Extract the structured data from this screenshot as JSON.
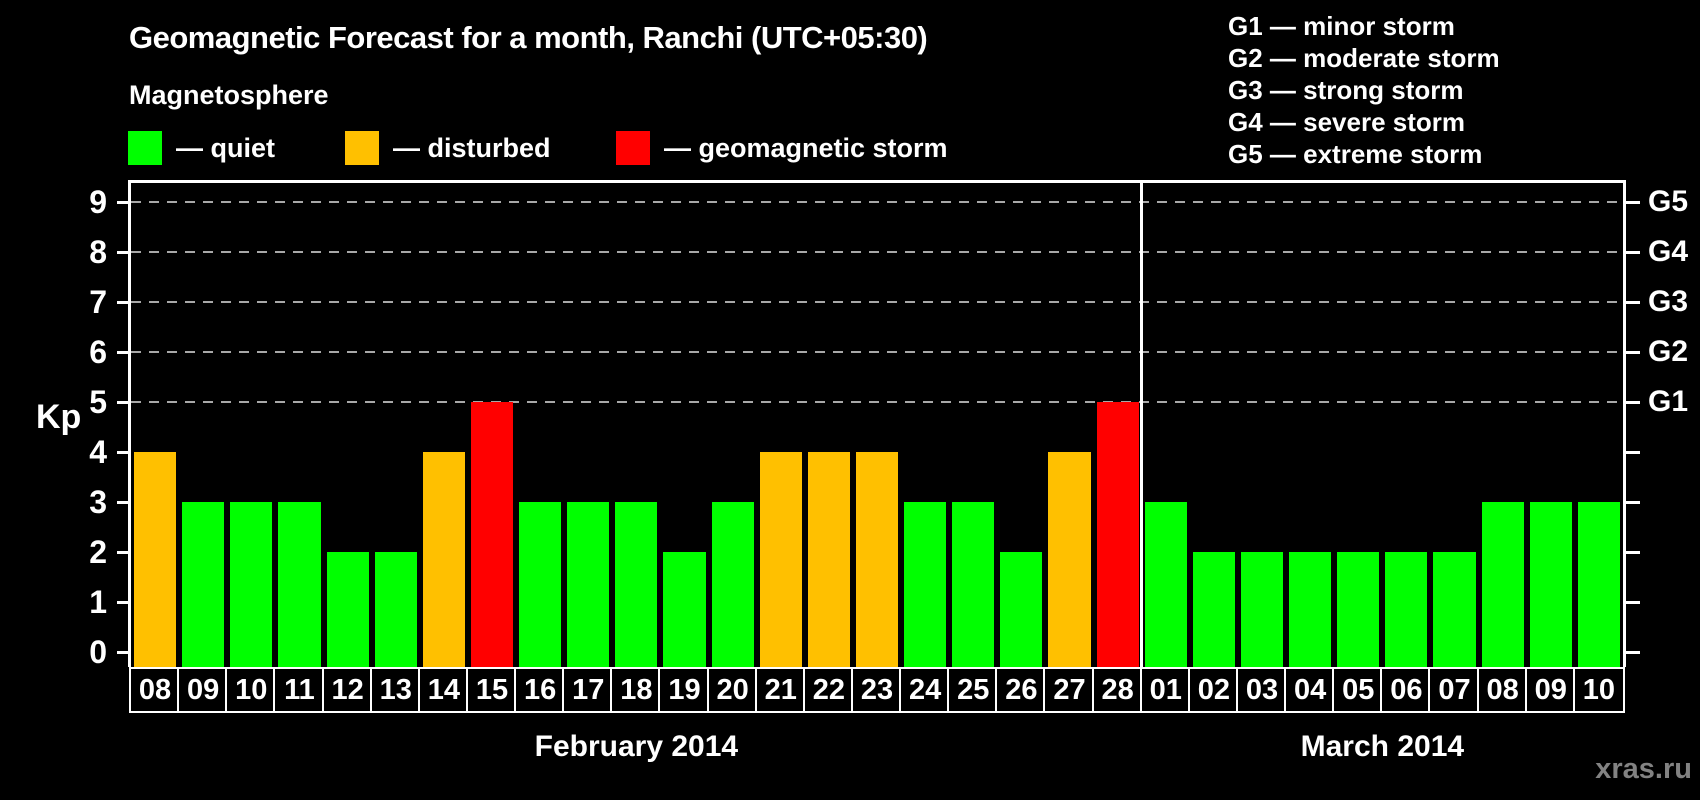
{
  "title": "Geomagnetic Forecast for a month, Ranchi (UTC+05:30)",
  "magnetosphere": {
    "heading": "Magnetosphere",
    "items": [
      {
        "key": "quiet",
        "label": "— quiet",
        "color": "#00ff00"
      },
      {
        "key": "disturbed",
        "label": "— disturbed",
        "color": "#ffc000"
      },
      {
        "key": "storm",
        "label": "— geomagnetic storm",
        "color": "#ff0000"
      }
    ]
  },
  "g_legend": [
    "G1 — minor storm",
    "G2 — moderate storm",
    "G3 — strong storm",
    "G4 — severe storm",
    "G5 — extreme storm"
  ],
  "watermark": "xras.ru",
  "chart_data": {
    "type": "bar",
    "title": "Geomagnetic Forecast for a month, Ranchi (UTC+05:30)",
    "ylabel": "Kp",
    "ylim": [
      0,
      9
    ],
    "y_ticks": [
      0,
      1,
      2,
      3,
      4,
      5,
      6,
      7,
      8,
      9
    ],
    "gridlines_at": [
      5,
      6,
      7,
      8,
      9
    ],
    "grid": "dashed horizontal at storm levels only",
    "legend_position": "top",
    "right_axis_labels": [
      {
        "kp": 5,
        "label": "G1"
      },
      {
        "kp": 6,
        "label": "G2"
      },
      {
        "kp": 7,
        "label": "G3"
      },
      {
        "kp": 8,
        "label": "G4"
      },
      {
        "kp": 9,
        "label": "G5"
      }
    ],
    "status_colors": {
      "quiet": "#00ff00",
      "disturbed": "#ffc000",
      "storm": "#ff0000"
    },
    "months": [
      {
        "label": "February 2014",
        "days": [
          {
            "day": "08",
            "kp": 4,
            "status": "disturbed"
          },
          {
            "day": "09",
            "kp": 3,
            "status": "quiet"
          },
          {
            "day": "10",
            "kp": 3,
            "status": "quiet"
          },
          {
            "day": "11",
            "kp": 3,
            "status": "quiet"
          },
          {
            "day": "12",
            "kp": 2,
            "status": "quiet"
          },
          {
            "day": "13",
            "kp": 2,
            "status": "quiet"
          },
          {
            "day": "14",
            "kp": 4,
            "status": "disturbed"
          },
          {
            "day": "15",
            "kp": 5,
            "status": "storm"
          },
          {
            "day": "16",
            "kp": 3,
            "status": "quiet"
          },
          {
            "day": "17",
            "kp": 3,
            "status": "quiet"
          },
          {
            "day": "18",
            "kp": 3,
            "status": "quiet"
          },
          {
            "day": "19",
            "kp": 2,
            "status": "quiet"
          },
          {
            "day": "20",
            "kp": 3,
            "status": "quiet"
          },
          {
            "day": "21",
            "kp": 4,
            "status": "disturbed"
          },
          {
            "day": "22",
            "kp": 4,
            "status": "disturbed"
          },
          {
            "day": "23",
            "kp": 4,
            "status": "disturbed"
          },
          {
            "day": "24",
            "kp": 3,
            "status": "quiet"
          },
          {
            "day": "25",
            "kp": 3,
            "status": "quiet"
          },
          {
            "day": "26",
            "kp": 2,
            "status": "quiet"
          },
          {
            "day": "27",
            "kp": 4,
            "status": "disturbed"
          },
          {
            "day": "28",
            "kp": 5,
            "status": "storm"
          }
        ]
      },
      {
        "label": "March 2014",
        "days": [
          {
            "day": "01",
            "kp": 3,
            "status": "quiet"
          },
          {
            "day": "02",
            "kp": 2,
            "status": "quiet"
          },
          {
            "day": "03",
            "kp": 2,
            "status": "quiet"
          },
          {
            "day": "04",
            "kp": 2,
            "status": "quiet"
          },
          {
            "day": "05",
            "kp": 2,
            "status": "quiet"
          },
          {
            "day": "06",
            "kp": 2,
            "status": "quiet"
          },
          {
            "day": "07",
            "kp": 2,
            "status": "quiet"
          },
          {
            "day": "08",
            "kp": 3,
            "status": "quiet"
          },
          {
            "day": "09",
            "kp": 3,
            "status": "quiet"
          },
          {
            "day": "10",
            "kp": 3,
            "status": "quiet"
          }
        ]
      }
    ],
    "categories": [
      "08",
      "09",
      "10",
      "11",
      "12",
      "13",
      "14",
      "15",
      "16",
      "17",
      "18",
      "19",
      "20",
      "21",
      "22",
      "23",
      "24",
      "25",
      "26",
      "27",
      "28",
      "01",
      "02",
      "03",
      "04",
      "05",
      "06",
      "07",
      "08",
      "09",
      "10"
    ],
    "values": [
      4,
      3,
      3,
      3,
      2,
      2,
      4,
      5,
      3,
      3,
      3,
      2,
      3,
      4,
      4,
      4,
      3,
      3,
      2,
      4,
      5,
      3,
      2,
      2,
      2,
      2,
      2,
      2,
      3,
      3,
      3
    ]
  }
}
